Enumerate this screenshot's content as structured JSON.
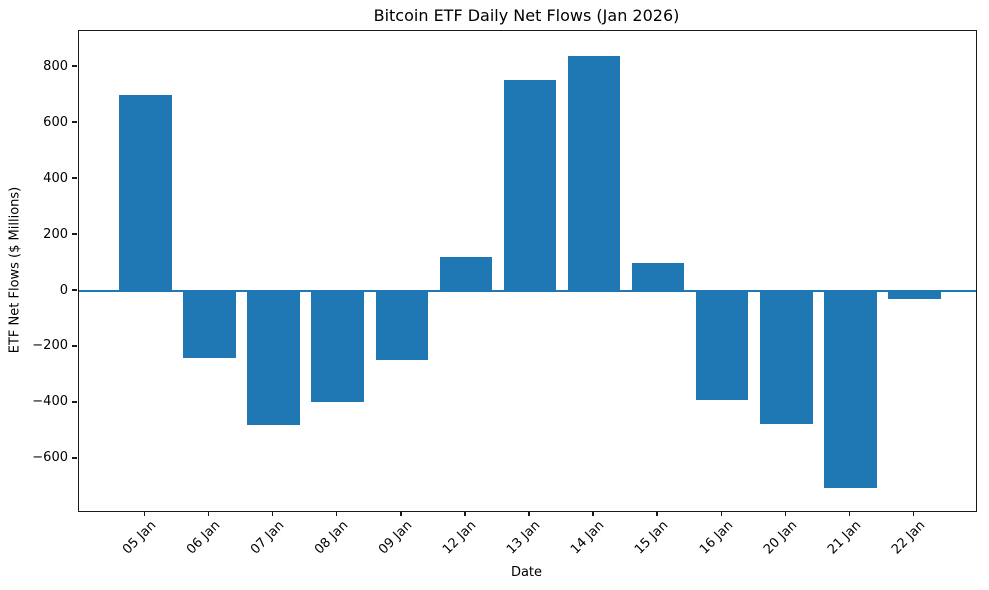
{
  "chart_data": {
    "type": "bar",
    "title": "Bitcoin ETF Daily Net Flows (Jan 2026)",
    "xlabel": "Date",
    "ylabel": "ETF Net Flows ($ Millions)",
    "categories": [
      "05 Jan",
      "06 Jan",
      "07 Jan",
      "08 Jan",
      "09 Jan",
      "12 Jan",
      "13 Jan",
      "14 Jan",
      "15 Jan",
      "16 Jan",
      "20 Jan",
      "21 Jan",
      "22 Jan"
    ],
    "values": [
      700,
      -240,
      -480,
      -395,
      -245,
      120,
      755,
      840,
      100,
      -390,
      -475,
      -705,
      -30
    ],
    "ylim": [
      -786,
      929
    ],
    "yticks": [
      800,
      600,
      400,
      200,
      0,
      -200,
      -400,
      -600
    ],
    "ytick_labels": [
      "800",
      "600",
      "400",
      "200",
      "0",
      "−200",
      "−400",
      "−600"
    ],
    "bar_color": "#1f77b4",
    "zero_line_color": "#1f77b4",
    "axis_color": "#1a1a1a",
    "background_color": "#ffffff",
    "grid": false,
    "legend": "none"
  }
}
